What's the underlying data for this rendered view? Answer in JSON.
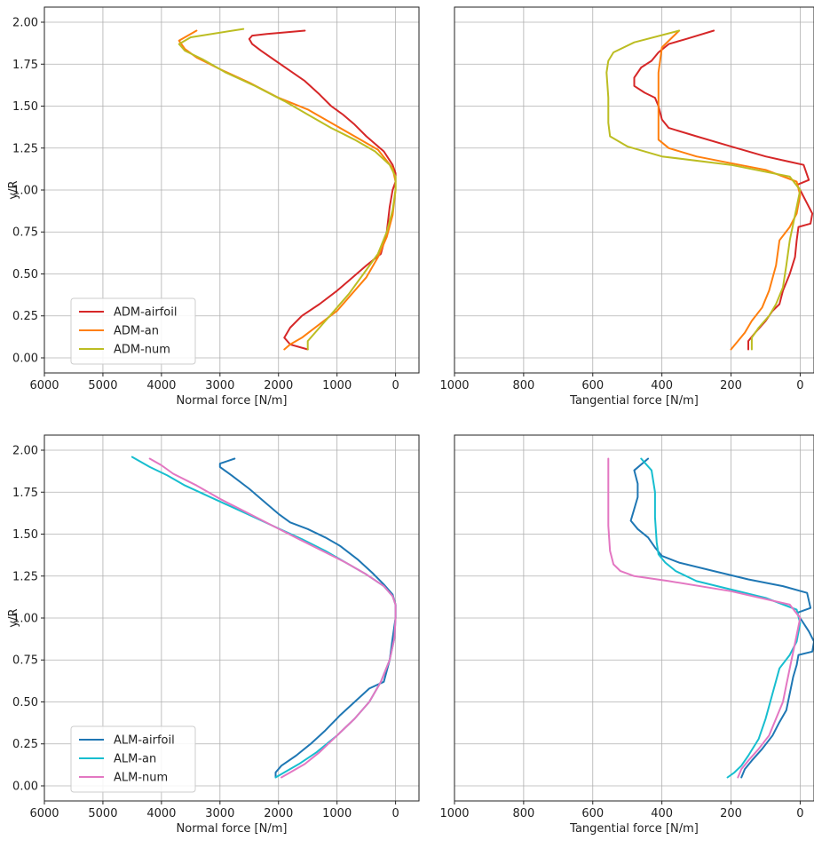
{
  "chart_data": [
    {
      "type": "line",
      "xlabel": "Normal force [N/m]",
      "ylabel": "y/R",
      "xlim": [
        6000,
        -400
      ],
      "ylim": [
        -0.09,
        2.09
      ],
      "x_inverted": true,
      "xticks": [
        "6000",
        "5000",
        "4000",
        "3000",
        "2000",
        "1000",
        "0"
      ],
      "yticks": [
        "0.00",
        "0.25",
        "0.50",
        "0.75",
        "1.00",
        "1.25",
        "1.50",
        "1.75",
        "2.00"
      ],
      "grid": true,
      "legend": "lower-left",
      "series": [
        {
          "name": "ADM-airfoil",
          "color": "#d62728",
          "x": [
            1500,
            1800,
            1900,
            1800,
            1600,
            1300,
            1000,
            800,
            500,
            250,
            150,
            100,
            50,
            0,
            0,
            50,
            200,
            500,
            700,
            900,
            1100,
            1300,
            1550,
            1800,
            2050,
            2300,
            2450,
            2500,
            2450,
            2200,
            1850,
            1550
          ],
          "y": [
            0.05,
            0.08,
            0.12,
            0.18,
            0.25,
            0.32,
            0.4,
            0.46,
            0.55,
            0.62,
            0.75,
            0.9,
            1.0,
            1.05,
            1.1,
            1.15,
            1.23,
            1.32,
            1.39,
            1.45,
            1.5,
            1.57,
            1.65,
            1.71,
            1.77,
            1.83,
            1.87,
            1.9,
            1.92,
            1.93,
            1.94,
            1.95
          ]
        },
        {
          "name": "ADM-an",
          "color": "#ff7f0e",
          "x": [
            1900,
            1800,
            1600,
            1300,
            1000,
            750,
            500,
            300,
            150,
            50,
            0,
            0,
            50,
            300,
            700,
            1100,
            1500,
            2000,
            2500,
            3000,
            3400,
            3600,
            3700,
            3400
          ],
          "y": [
            0.05,
            0.08,
            0.12,
            0.2,
            0.28,
            0.38,
            0.48,
            0.6,
            0.72,
            0.85,
            1.0,
            1.05,
            1.13,
            1.24,
            1.32,
            1.4,
            1.48,
            1.55,
            1.64,
            1.72,
            1.79,
            1.84,
            1.89,
            1.95
          ]
        },
        {
          "name": "ADM-num",
          "color": "#bcbd22",
          "x": [
            1500,
            1500,
            1300,
            1050,
            800,
            550,
            300,
            150,
            50,
            0,
            0,
            100,
            350,
            700,
            1100,
            1500,
            1900,
            2400,
            2900,
            3300,
            3600,
            3700,
            3500,
            2600
          ],
          "y": [
            0.05,
            0.1,
            0.18,
            0.28,
            0.38,
            0.5,
            0.62,
            0.75,
            0.88,
            1.0,
            1.08,
            1.15,
            1.23,
            1.3,
            1.37,
            1.45,
            1.53,
            1.62,
            1.7,
            1.78,
            1.83,
            1.87,
            1.91,
            1.96
          ]
        }
      ]
    },
    {
      "type": "line",
      "xlabel": "Tangential force [N/m]",
      "ylabel": "",
      "xlim": [
        1000,
        -40
      ],
      "ylim": [
        -0.09,
        2.09
      ],
      "x_inverted": true,
      "xticks": [
        "1000",
        "800",
        "600",
        "400",
        "200",
        "0"
      ],
      "grid": true,
      "series": [
        {
          "name": "ADM-airfoil",
          "color": "#d62728",
          "x": [
            150,
            150,
            130,
            100,
            80,
            60,
            50,
            30,
            15,
            10,
            5,
            -30,
            -35,
            -20,
            0,
            10,
            -25,
            -10,
            100,
            200,
            300,
            380,
            400,
            410,
            420,
            450,
            480,
            480,
            460,
            430,
            410,
            380,
            330,
            250
          ],
          "y": [
            0.05,
            0.1,
            0.15,
            0.22,
            0.28,
            0.32,
            0.4,
            0.5,
            0.6,
            0.7,
            0.78,
            0.8,
            0.86,
            0.92,
            1.0,
            1.03,
            1.06,
            1.15,
            1.2,
            1.26,
            1.32,
            1.37,
            1.42,
            1.5,
            1.55,
            1.58,
            1.62,
            1.67,
            1.73,
            1.77,
            1.82,
            1.87,
            1.9,
            1.95
          ]
        },
        {
          "name": "ADM-an",
          "color": "#ff7f0e",
          "x": [
            200,
            180,
            160,
            140,
            110,
            90,
            70,
            60,
            30,
            10,
            0,
            10,
            100,
            200,
            300,
            380,
            410,
            410,
            410,
            410,
            400,
            350
          ],
          "y": [
            0.05,
            0.1,
            0.15,
            0.22,
            0.3,
            0.4,
            0.55,
            0.7,
            0.78,
            0.86,
            0.97,
            1.05,
            1.12,
            1.16,
            1.2,
            1.25,
            1.3,
            1.4,
            1.55,
            1.7,
            1.85,
            1.95
          ]
        },
        {
          "name": "ADM-num",
          "color": "#bcbd22",
          "x": [
            140,
            140,
            120,
            90,
            70,
            50,
            40,
            30,
            15,
            0,
            30,
            200,
            400,
            500,
            550,
            555,
            555,
            560,
            555,
            540,
            480,
            350
          ],
          "y": [
            0.05,
            0.12,
            0.18,
            0.25,
            0.32,
            0.42,
            0.55,
            0.7,
            0.85,
            1.0,
            1.08,
            1.15,
            1.2,
            1.26,
            1.32,
            1.4,
            1.55,
            1.7,
            1.77,
            1.82,
            1.88,
            1.95
          ]
        }
      ]
    },
    {
      "type": "line",
      "xlabel": "Normal force [N/m]",
      "ylabel": "y/R",
      "xlim": [
        6000,
        -400
      ],
      "ylim": [
        -0.09,
        2.09
      ],
      "x_inverted": true,
      "xticks": [
        "6000",
        "5000",
        "4000",
        "3000",
        "2000",
        "1000",
        "0"
      ],
      "yticks": [
        "0.00",
        "0.25",
        "0.50",
        "0.75",
        "1.00",
        "1.25",
        "1.50",
        "1.75",
        "2.00"
      ],
      "grid": true,
      "legend": "lower-left",
      "series": [
        {
          "name": "ALM-airfoil",
          "color": "#1f77b4",
          "x": [
            2050,
            2050,
            1950,
            1700,
            1450,
            1200,
            950,
            700,
            450,
            200,
            100,
            50,
            0,
            0,
            50,
            200,
            400,
            650,
            950,
            1200,
            1500,
            1800,
            2000,
            2200,
            2500,
            2800,
            3000,
            3000,
            2750
          ],
          "y": [
            0.05,
            0.08,
            0.12,
            0.18,
            0.25,
            0.33,
            0.42,
            0.5,
            0.58,
            0.62,
            0.75,
            0.88,
            1.0,
            1.08,
            1.14,
            1.2,
            1.27,
            1.35,
            1.43,
            1.48,
            1.53,
            1.57,
            1.62,
            1.68,
            1.77,
            1.85,
            1.9,
            1.92,
            1.95
          ]
        },
        {
          "name": "ALM-an",
          "color": "#17becf",
          "x": [
            2050,
            1900,
            1650,
            1350,
            1000,
            700,
            450,
            250,
            100,
            20,
            0,
            0,
            50,
            200,
            500,
            850,
            1200,
            1600,
            2100,
            2600,
            3100,
            3600,
            3900,
            4200,
            4500
          ],
          "y": [
            0.05,
            0.08,
            0.13,
            0.2,
            0.3,
            0.4,
            0.5,
            0.62,
            0.75,
            0.88,
            1.0,
            1.08,
            1.13,
            1.19,
            1.26,
            1.33,
            1.4,
            1.47,
            1.55,
            1.63,
            1.71,
            1.79,
            1.85,
            1.9,
            1.96
          ]
        },
        {
          "name": "ALM-num",
          "color": "#e377c2",
          "x": [
            1950,
            1800,
            1550,
            1300,
            1000,
            700,
            450,
            250,
            100,
            20,
            0,
            0,
            50,
            200,
            500,
            850,
            1250,
            1650,
            2100,
            2550,
            3000,
            3400,
            3800,
            4000,
            4200
          ],
          "y": [
            0.05,
            0.08,
            0.13,
            0.2,
            0.3,
            0.4,
            0.5,
            0.62,
            0.75,
            0.88,
            1.0,
            1.08,
            1.13,
            1.19,
            1.26,
            1.33,
            1.4,
            1.47,
            1.55,
            1.63,
            1.71,
            1.79,
            1.86,
            1.91,
            1.95
          ]
        }
      ]
    },
    {
      "type": "line",
      "xlabel": "Tangential force [N/m]",
      "ylabel": "",
      "xlim": [
        1000,
        -40
      ],
      "ylim": [
        -0.09,
        2.09
      ],
      "x_inverted": true,
      "xticks": [
        "1000",
        "800",
        "600",
        "400",
        "200",
        "0"
      ],
      "grid": true,
      "series": [
        {
          "name": "ALM-airfoil",
          "color": "#1f77b4",
          "x": [
            170,
            160,
            140,
            110,
            80,
            60,
            40,
            30,
            20,
            10,
            5,
            -35,
            -40,
            -25,
            0,
            10,
            -30,
            -20,
            50,
            150,
            250,
            350,
            400,
            420,
            440,
            470,
            490,
            480,
            470,
            470,
            480,
            440
          ],
          "y": [
            0.05,
            0.1,
            0.15,
            0.22,
            0.3,
            0.38,
            0.45,
            0.55,
            0.65,
            0.72,
            0.78,
            0.8,
            0.86,
            0.92,
            1.0,
            1.03,
            1.06,
            1.15,
            1.19,
            1.23,
            1.28,
            1.33,
            1.37,
            1.42,
            1.48,
            1.53,
            1.58,
            1.65,
            1.72,
            1.8,
            1.88,
            1.95
          ]
        },
        {
          "name": "ALM-an",
          "color": "#17becf",
          "x": [
            210,
            190,
            170,
            150,
            120,
            100,
            80,
            60,
            30,
            10,
            0,
            10,
            100,
            200,
            300,
            360,
            390,
            410,
            415,
            420,
            420,
            430,
            460
          ],
          "y": [
            0.05,
            0.08,
            0.12,
            0.18,
            0.28,
            0.4,
            0.55,
            0.7,
            0.78,
            0.86,
            0.97,
            1.05,
            1.12,
            1.17,
            1.22,
            1.28,
            1.33,
            1.38,
            1.45,
            1.6,
            1.75,
            1.88,
            1.95
          ]
        },
        {
          "name": "ALM-num",
          "color": "#e377c2",
          "x": [
            180,
            170,
            150,
            120,
            90,
            70,
            50,
            40,
            30,
            15,
            0,
            30,
            200,
            380,
            480,
            520,
            540,
            550,
            555,
            555,
            555
          ],
          "y": [
            0.05,
            0.1,
            0.15,
            0.22,
            0.3,
            0.4,
            0.5,
            0.6,
            0.7,
            0.85,
            1.0,
            1.08,
            1.16,
            1.22,
            1.25,
            1.28,
            1.32,
            1.4,
            1.55,
            1.75,
            1.95
          ]
        }
      ]
    }
  ]
}
